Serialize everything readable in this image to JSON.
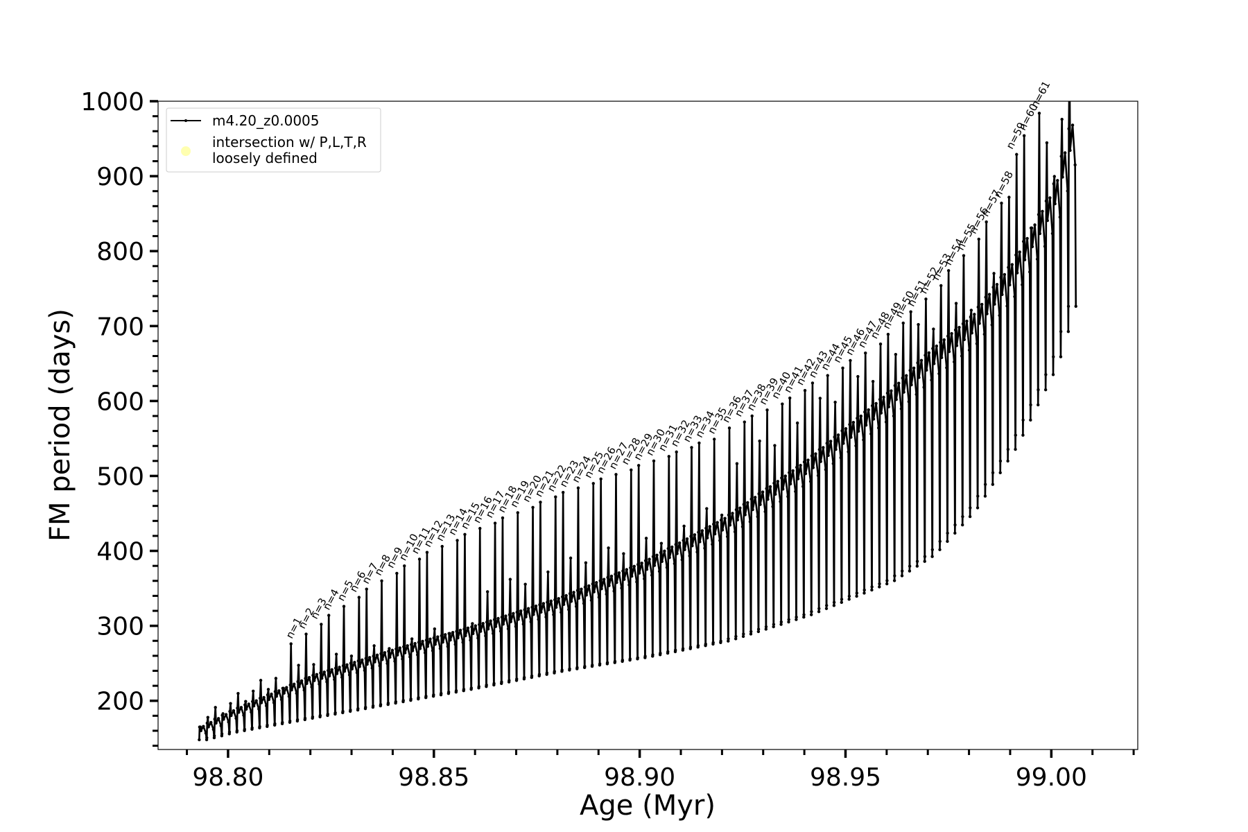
{
  "chart_data": {
    "type": "line",
    "xlabel": "Age (Myr)",
    "ylabel": "FM period (days)",
    "xlim": [
      98.783,
      99.021
    ],
    "ylim": [
      135,
      1000
    ],
    "x_ticks": [
      98.8,
      98.85,
      98.9,
      98.95,
      99.0
    ],
    "x_tick_labels": [
      "98.80",
      "98.85",
      "98.90",
      "98.95",
      "99.00"
    ],
    "y_ticks": [
      200,
      300,
      400,
      500,
      600,
      700,
      800,
      900,
      1000
    ],
    "y_tick_labels": [
      "200",
      "300",
      "400",
      "500",
      "600",
      "700",
      "800",
      "900",
      "1000"
    ],
    "legend_position": "top-left",
    "legend": [
      {
        "label": "m4.20_z0.0005",
        "color": "#000000",
        "marker": "line-dot"
      },
      {
        "label": "intersection w/ P,L,T,R\nloosely defined",
        "color": "#ffffb0",
        "marker": "circle"
      }
    ],
    "series": [
      {
        "name": "m4.20_z0.0005",
        "color": "#000000",
        "pulse_age_start": 98.793,
        "pulse_age_end": 99.006,
        "pulse_count": 116,
        "baseline": {
          "age": [
            98.793,
            98.8,
            98.82,
            98.84,
            98.86,
            98.88,
            98.9,
            98.92,
            98.94,
            98.96,
            98.97,
            98.98,
            98.99,
            99.0,
            99.006
          ],
          "period": [
            165,
            185,
            233,
            268,
            300,
            336,
            383,
            442,
            519,
            610,
            665,
            710,
            782,
            880,
            1000
          ]
        },
        "minimum": {
          "age": [
            98.793,
            98.8,
            98.82,
            98.84,
            98.86,
            98.88,
            98.9,
            98.92,
            98.94,
            98.96,
            98.97,
            98.98,
            98.99,
            99.0,
            99.006
          ],
          "period": [
            148,
            158,
            178,
            198,
            218,
            240,
            258,
            280,
            315,
            360,
            395,
            455,
            540,
            650,
            760
          ]
        }
      }
    ],
    "annotations": [
      {
        "text": "n=1",
        "age": 98.8155,
        "period": 282
      },
      {
        "text": "n=2",
        "age": 98.8185,
        "period": 295
      },
      {
        "text": "n=3",
        "age": 98.8215,
        "period": 308
      },
      {
        "text": "n=4",
        "age": 98.8245,
        "period": 320
      },
      {
        "text": "n=5",
        "age": 98.828,
        "period": 332
      },
      {
        "text": "n=6",
        "age": 98.831,
        "period": 344
      },
      {
        "text": "n=7",
        "age": 98.834,
        "period": 355
      },
      {
        "text": "n=8",
        "age": 98.837,
        "period": 366
      },
      {
        "text": "n=9",
        "age": 98.84,
        "period": 376
      },
      {
        "text": "n=10",
        "age": 98.843,
        "period": 386
      },
      {
        "text": "n=11",
        "age": 98.846,
        "period": 395
      },
      {
        "text": "n=12",
        "age": 98.849,
        "period": 404
      },
      {
        "text": "n=13",
        "age": 98.852,
        "period": 412
      },
      {
        "text": "n=14",
        "age": 98.855,
        "period": 420
      },
      {
        "text": "n=15",
        "age": 98.858,
        "period": 428
      },
      {
        "text": "n=16",
        "age": 98.861,
        "period": 436
      },
      {
        "text": "n=17",
        "age": 98.864,
        "period": 443
      },
      {
        "text": "n=18",
        "age": 98.867,
        "period": 450
      },
      {
        "text": "n=19",
        "age": 98.87,
        "period": 457
      },
      {
        "text": "n=20",
        "age": 98.873,
        "period": 464
      },
      {
        "text": "n=21",
        "age": 98.876,
        "period": 471
      },
      {
        "text": "n=22",
        "age": 98.879,
        "period": 478
      },
      {
        "text": "n=23",
        "age": 98.882,
        "period": 484
      },
      {
        "text": "n=24",
        "age": 98.885,
        "period": 490
      },
      {
        "text": "n=25",
        "age": 98.888,
        "period": 496
      },
      {
        "text": "n=26",
        "age": 98.891,
        "period": 502
      },
      {
        "text": "n=27",
        "age": 98.894,
        "period": 508
      },
      {
        "text": "n=28",
        "age": 98.897,
        "period": 514
      },
      {
        "text": "n=29",
        "age": 98.9,
        "period": 520
      },
      {
        "text": "n=30",
        "age": 98.903,
        "period": 526
      },
      {
        "text": "n=31",
        "age": 98.906,
        "period": 532
      },
      {
        "text": "n=32",
        "age": 98.909,
        "period": 538
      },
      {
        "text": "n=33",
        "age": 98.912,
        "period": 544
      },
      {
        "text": "n=34",
        "age": 98.915,
        "period": 550
      },
      {
        "text": "n=35",
        "age": 98.918,
        "period": 555
      },
      {
        "text": "n=36",
        "age": 98.9215,
        "period": 570
      },
      {
        "text": "n=37",
        "age": 98.9245,
        "period": 578
      },
      {
        "text": "n=38",
        "age": 98.9275,
        "period": 586
      },
      {
        "text": "n=39",
        "age": 98.9305,
        "period": 594
      },
      {
        "text": "n=40",
        "age": 98.9335,
        "period": 602
      },
      {
        "text": "n=41",
        "age": 98.9365,
        "period": 610
      },
      {
        "text": "n=42",
        "age": 98.9395,
        "period": 620
      },
      {
        "text": "n=43",
        "age": 98.9425,
        "period": 630
      },
      {
        "text": "n=44",
        "age": 98.9455,
        "period": 640
      },
      {
        "text": "n=45",
        "age": 98.9485,
        "period": 650
      },
      {
        "text": "n=46",
        "age": 98.9515,
        "period": 660
      },
      {
        "text": "n=47",
        "age": 98.9545,
        "period": 670
      },
      {
        "text": "n=48",
        "age": 98.9575,
        "period": 682
      },
      {
        "text": "n=49",
        "age": 98.9605,
        "period": 695
      },
      {
        "text": "n=50",
        "age": 98.9635,
        "period": 710
      },
      {
        "text": "n=51",
        "age": 98.9665,
        "period": 725
      },
      {
        "text": "n=52",
        "age": 98.9695,
        "period": 742
      },
      {
        "text": "n=53",
        "age": 98.9725,
        "period": 760
      },
      {
        "text": "n=54",
        "age": 98.9755,
        "period": 780
      },
      {
        "text": "n=55",
        "age": 98.9785,
        "period": 800
      },
      {
        "text": "n=56",
        "age": 98.9815,
        "period": 822
      },
      {
        "text": "n=57",
        "age": 98.9845,
        "period": 845
      },
      {
        "text": "n=58",
        "age": 98.9875,
        "period": 870
      },
      {
        "text": "n=59",
        "age": 98.9905,
        "period": 935
      },
      {
        "text": "n=60",
        "age": 98.9935,
        "period": 960
      },
      {
        "text": "n=61",
        "age": 98.9965,
        "period": 990
      }
    ]
  }
}
